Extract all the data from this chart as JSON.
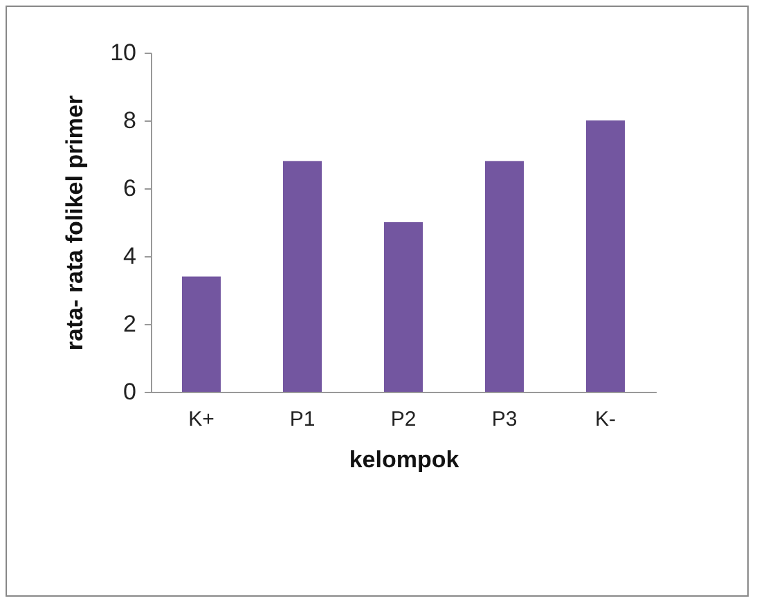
{
  "chart_data": {
    "type": "bar",
    "xlabel": "kelompok",
    "ylabel": "rata- rata folikel primer",
    "categories": [
      "K+",
      "P1",
      "P2",
      "P3",
      "K-"
    ],
    "values": [
      3.4,
      6.8,
      5.0,
      6.8,
      8.0
    ],
    "color": "#7356a0",
    "ylim": [
      0,
      10
    ],
    "yticks": [
      0,
      2,
      4,
      6,
      8,
      10
    ],
    "grid": false
  }
}
